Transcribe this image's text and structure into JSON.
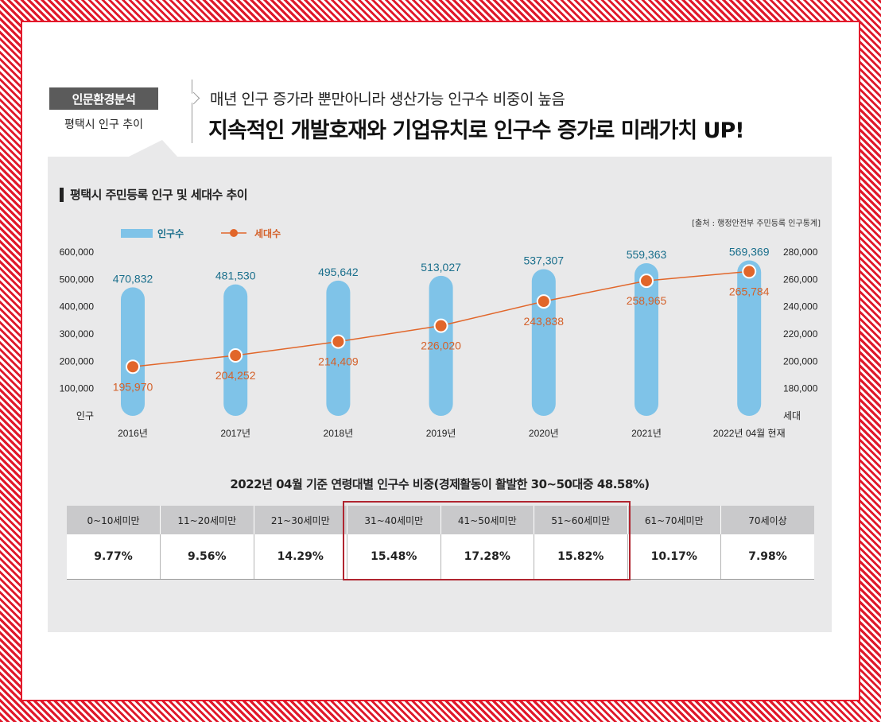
{
  "header": {
    "badge": "인문환경분석",
    "badge_sub": "평택시 인구 추이",
    "headline_sub": "매년 인구 증가라 뿐만아니라 생산가능 인구수 비중이 높음",
    "headline": "지속적인 개발호재와 기업유치로 인구수 증가로 미래가치 UP!"
  },
  "colors": {
    "bar": "#7fc3e8",
    "line": "#e1662a",
    "bar_label": "#1a6f8c",
    "line_label": "#d4612a",
    "frame": "#e0182a"
  },
  "chart_data": {
    "type": "bar",
    "title": "평택시 주민등록 인구 및 세대수 추이",
    "source": "[출처 : 행정안전부 주민등록 인구통계]",
    "categories": [
      "2016년",
      "2017년",
      "2018년",
      "2019년",
      "2020년",
      "2021년",
      "2022년 04월 현재"
    ],
    "series": [
      {
        "name": "인구수",
        "type": "bar",
        "axis": "left",
        "values": [
          470832,
          481530,
          495642,
          513027,
          537307,
          559363,
          569369
        ],
        "labels": [
          "470,832",
          "481,530",
          "495,642",
          "513,027",
          "537,307",
          "559,363",
          "569,369"
        ]
      },
      {
        "name": "세대수",
        "type": "line",
        "axis": "right",
        "values": [
          195970,
          204252,
          214409,
          226020,
          243838,
          258965,
          265784
        ],
        "labels": [
          "195,970",
          "204,252",
          "214,409",
          "226,020",
          "243,838",
          "258,965",
          "265,784"
        ]
      }
    ],
    "y_left": {
      "label": "인구",
      "range": [
        0,
        600000
      ],
      "ticks": [
        100000,
        200000,
        300000,
        400000,
        500000,
        600000
      ],
      "tick_labels": [
        "100,000",
        "200,000",
        "300,000",
        "400,000",
        "500,000",
        "600,000"
      ]
    },
    "y_right": {
      "label": "세대",
      "range": [
        160000,
        280000
      ],
      "ticks": [
        180000,
        200000,
        220000,
        240000,
        260000,
        280000
      ],
      "tick_labels": [
        "180,000",
        "200,000",
        "220,000",
        "240,000",
        "260,000",
        "280,000"
      ]
    },
    "legend": "top-left",
    "grid": false
  },
  "age_table": {
    "title": "2022년 04월 기준 연령대별 인구수 비중(경제활동이 활발한 30~50대중 48.58%)",
    "headers": [
      "0~10세미만",
      "11~20세미만",
      "21~30세미만",
      "31~40세미만",
      "41~50세미만",
      "51~60세미만",
      "61~70세미만",
      "70세이상"
    ],
    "values": [
      "9.77%",
      "9.56%",
      "14.29%",
      "15.48%",
      "17.28%",
      "15.82%",
      "10.17%",
      "7.98%"
    ],
    "highlight": [
      "31~40세미만",
      "41~50세미만",
      "51~60세미만"
    ]
  }
}
